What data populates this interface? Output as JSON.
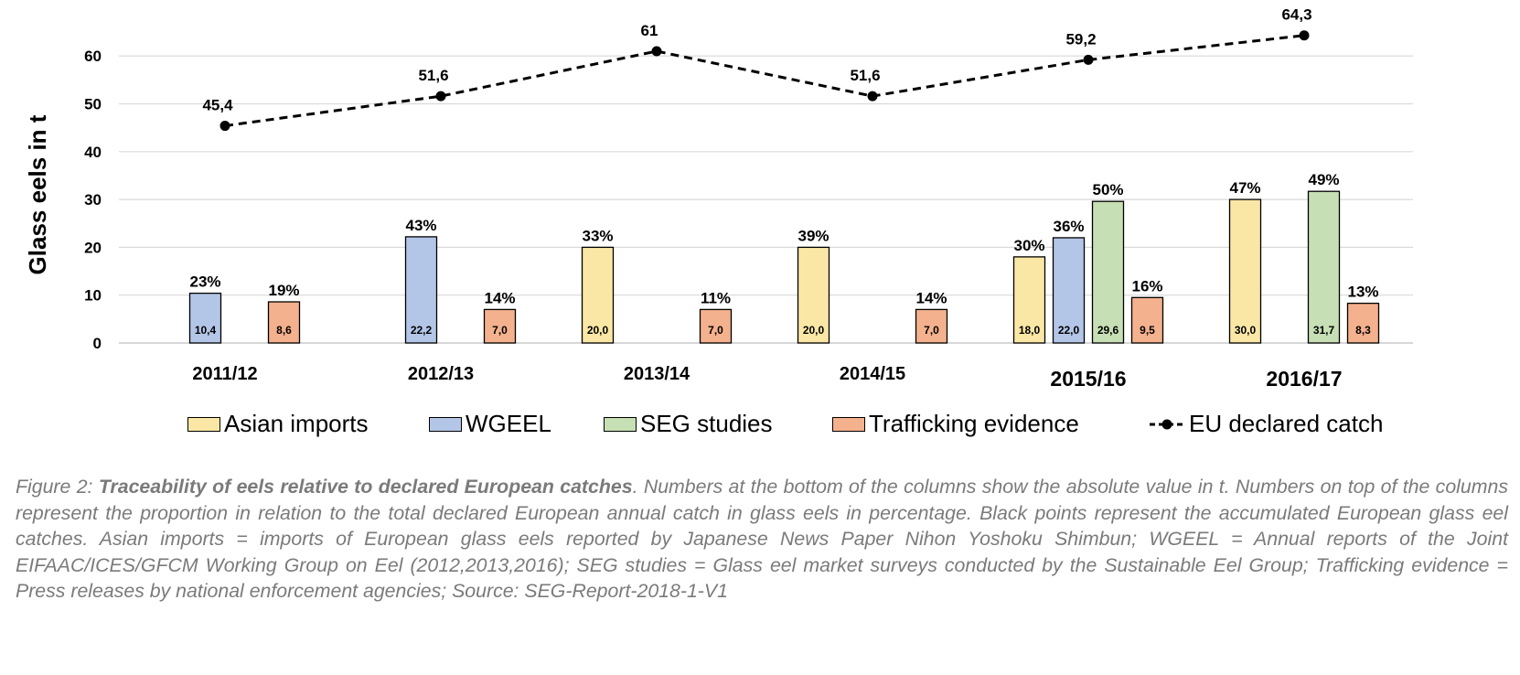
{
  "chart_data": {
    "type": "bar",
    "ylabel": "Glass eels in t",
    "ylim": [
      0,
      65
    ],
    "yticks": [
      0,
      10,
      20,
      30,
      40,
      50,
      60
    ],
    "grid": true,
    "legend_position": "bottom",
    "categories": [
      "2011/12",
      "2012/13",
      "2013/14",
      "2014/15",
      "2015/16",
      "2016/17"
    ],
    "series": [
      {
        "name": "Asian imports",
        "color": "#fae7a5",
        "values": [
          null,
          null,
          20.0,
          20.0,
          18.0,
          30.0
        ],
        "value_labels": [
          null,
          null,
          "20,0",
          "20,0",
          "18,0",
          "30,0"
        ],
        "pct_labels": [
          null,
          null,
          "33%",
          "39%",
          "30%",
          "47%"
        ]
      },
      {
        "name": "WGEEL",
        "color": "#b4c6e7",
        "values": [
          10.4,
          22.2,
          null,
          null,
          22.0,
          null
        ],
        "value_labels": [
          "10,4",
          "22,2",
          null,
          null,
          "22,0",
          null
        ],
        "pct_labels": [
          "23%",
          "43%",
          null,
          null,
          "36%",
          null
        ]
      },
      {
        "name": "SEG studies",
        "color": "#c6dfb4",
        "values": [
          null,
          null,
          null,
          null,
          29.6,
          31.7
        ],
        "value_labels": [
          null,
          null,
          null,
          null,
          "29,6",
          "31,7"
        ],
        "pct_labels": [
          null,
          null,
          null,
          null,
          "50%",
          "49%"
        ]
      },
      {
        "name": "Trafficking evidence",
        "color": "#f4b18d",
        "values": [
          8.6,
          7.0,
          7.0,
          7.0,
          9.5,
          8.3
        ],
        "value_labels": [
          "8,6",
          "7,0",
          "7,0",
          "7,0",
          "9,5",
          "8,3"
        ],
        "pct_labels": [
          "19%",
          "14%",
          "11%",
          "14%",
          "16%",
          "13%"
        ]
      }
    ],
    "line": {
      "name": "EU declared catch",
      "style": "dashed",
      "color": "#000000",
      "values": [
        45.4,
        51.6,
        61,
        51.6,
        59.2,
        64.3
      ],
      "labels": [
        "45,4",
        "51,6",
        "61",
        "51,6",
        "59,2",
        "64,3"
      ]
    }
  },
  "caption": {
    "prefix": "Figure 2: ",
    "title": "Traceability of eels relative to declared European catches",
    "body": ". Numbers at the bottom of the columns show the absolute value in t. Numbers on top of the columns represent the proportion in relation to the total declared European annual catch in glass eels in percentage. Black points represent the accumulated European glass eel catches. Asian imports = imports of European glass eels reported by Japanese News Paper Nihon Yoshoku Shimbun; WGEEL = Annual reports of the Joint EIFAAC/ICES/GFCM Working Group on Eel (2012,2013,2016); SEG studies = Glass eel market surveys conducted by the Sustainable Eel Group; Trafficking evidence = Press releases by national enforcement agencies; Source: SEG-Report-2018-1-V1"
  }
}
